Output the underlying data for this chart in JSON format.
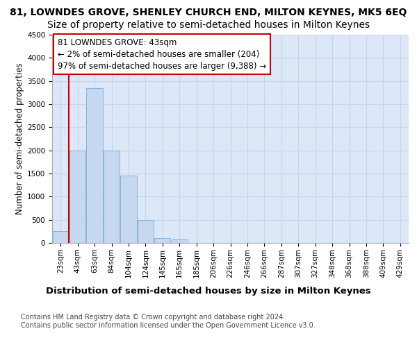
{
  "title_line1": "81, LOWNDES GROVE, SHENLEY CHURCH END, MILTON KEYNES, MK5 6EQ",
  "title_line2": "Size of property relative to semi-detached houses in Milton Keynes",
  "xlabel": "Distribution of semi-detached houses by size in Milton Keynes",
  "ylabel": "Number of semi-detached properties",
  "categories": [
    "23sqm",
    "43sqm",
    "63sqm",
    "84sqm",
    "104sqm",
    "124sqm",
    "145sqm",
    "165sqm",
    "185sqm",
    "206sqm",
    "226sqm",
    "246sqm",
    "266sqm",
    "287sqm",
    "307sqm",
    "327sqm",
    "348sqm",
    "368sqm",
    "388sqm",
    "409sqm",
    "429sqm"
  ],
  "values": [
    250,
    2000,
    3350,
    2000,
    1450,
    500,
    100,
    75,
    0,
    0,
    0,
    0,
    0,
    0,
    0,
    0,
    0,
    0,
    0,
    0,
    0
  ],
  "bar_color": "#c5d8f0",
  "bar_edge_color": "#7bafd4",
  "vline_color": "#cc0000",
  "vline_x_bar_index": 1,
  "annotation_text": "81 LOWNDES GROVE: 43sqm\n← 2% of semi-detached houses are smaller (204)\n97% of semi-detached houses are larger (9,388) →",
  "annotation_box_facecolor": "#ffffff",
  "annotation_box_edgecolor": "#cc0000",
  "ylim": [
    0,
    4500
  ],
  "yticks": [
    0,
    500,
    1000,
    1500,
    2000,
    2500,
    3000,
    3500,
    4000,
    4500
  ],
  "grid_color": "#c8d4e8",
  "axes_facecolor": "#dce8f8",
  "fig_facecolor": "#ffffff",
  "footnote": "Contains HM Land Registry data © Crown copyright and database right 2024.\nContains public sector information licensed under the Open Government Licence v3.0.",
  "title1_fontsize": 10,
  "title2_fontsize": 10,
  "xlabel_fontsize": 9.5,
  "ylabel_fontsize": 8.5,
  "tick_fontsize": 7.5,
  "annotation_fontsize": 8.5,
  "footnote_fontsize": 7
}
